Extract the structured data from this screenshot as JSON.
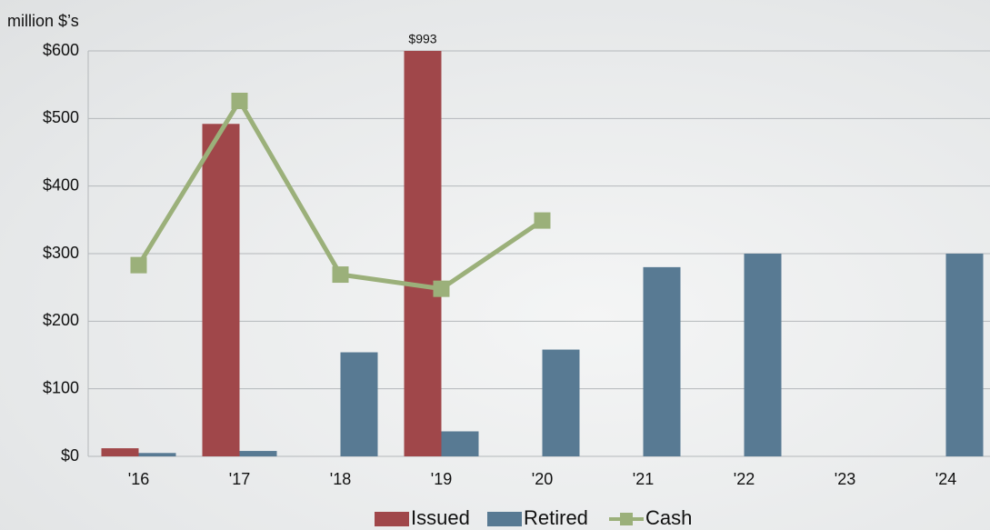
{
  "chart_data": {
    "type": "bar",
    "y_label": "million $’s",
    "categories": [
      "'16",
      "'17",
      "'18",
      "'19",
      "'20",
      "'21",
      "'22",
      "'23",
      "'24"
    ],
    "series": [
      {
        "name": "Issued",
        "color": "#a0474a",
        "values": [
          12,
          492,
          null,
          993,
          null,
          null,
          null,
          null,
          null
        ],
        "value_labels": [
          null,
          null,
          null,
          "$993",
          null,
          null,
          null,
          null,
          null
        ]
      },
      {
        "name": "Retired",
        "color": "#587a93",
        "values": [
          5,
          8,
          154,
          37,
          158,
          280,
          300,
          null,
          300
        ]
      },
      {
        "name": "Cash",
        "type": "line",
        "color": "#9bb07a",
        "values": [
          283,
          526,
          269,
          248,
          349,
          null,
          null,
          null,
          null
        ]
      }
    ],
    "ylim": [
      0,
      600
    ],
    "yticks": [
      {
        "value": 0,
        "label": "$0"
      },
      {
        "value": 100,
        "label": "$100"
      },
      {
        "value": 200,
        "label": "$200"
      },
      {
        "value": 300,
        "label": "$300"
      },
      {
        "value": 400,
        "label": "$400"
      },
      {
        "value": 500,
        "label": "$500"
      },
      {
        "value": 600,
        "label": "$600"
      }
    ],
    "grid": true,
    "legend": "bottom"
  }
}
